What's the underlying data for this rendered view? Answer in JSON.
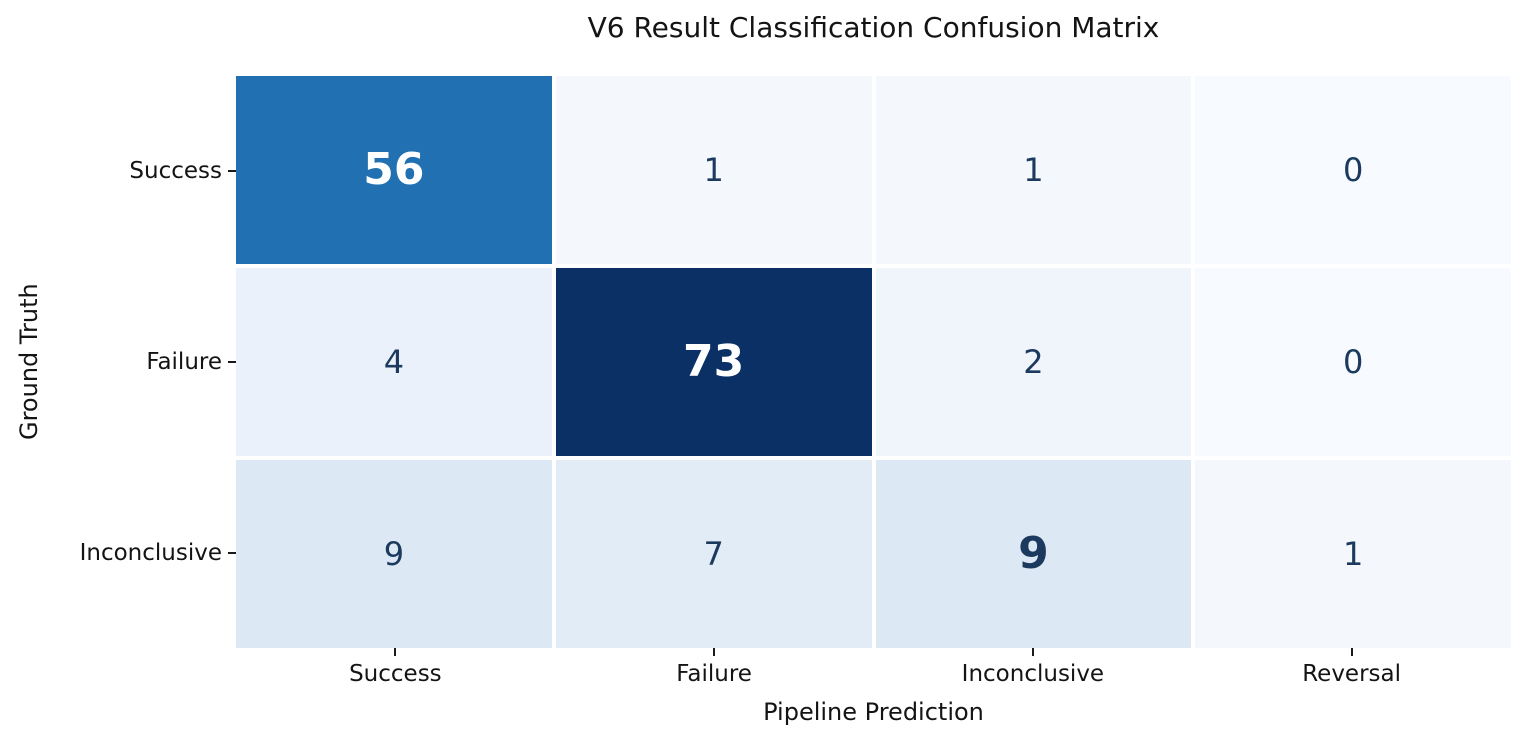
{
  "chart_data": {
    "type": "heatmap",
    "title": "V6 Result Classification Confusion Matrix",
    "xlabel": "Pipeline Prediction",
    "ylabel": "Ground Truth",
    "x_categories": [
      "Success",
      "Failure",
      "Inconclusive",
      "Reversal"
    ],
    "y_categories": [
      "Success",
      "Failure",
      "Inconclusive"
    ],
    "matrix": [
      [
        56,
        1,
        1,
        0
      ],
      [
        4,
        73,
        2,
        0
      ],
      [
        9,
        7,
        9,
        1
      ]
    ],
    "colormap": "Blues",
    "vmin": 0,
    "vmax": 73,
    "legend": "none",
    "grid_lines": "white cell separators",
    "emphasized_cells": "diagonal (bold, larger font)",
    "cell_colors": [
      [
        "#2171b2",
        "#f4f8fd",
        "#f4f8fd",
        "#f7fbff"
      ],
      [
        "#eaf1fa",
        "#0a3066",
        "#f0f5fc",
        "#f7fbff"
      ],
      [
        "#dce8f4",
        "#e1ecf7",
        "#dce8f4",
        "#f4f8fd"
      ]
    ],
    "text_colors": [
      [
        "#ffffff",
        "#1c3a5e",
        "#1c3a5e",
        "#1c3a5e"
      ],
      [
        "#1c3a5e",
        "#ffffff",
        "#1c3a5e",
        "#1c3a5e"
      ],
      [
        "#1c3a5e",
        "#1c3a5e",
        "#1c3a5e",
        "#1c3a5e"
      ]
    ]
  },
  "style": {
    "background": "#ffffff",
    "accent_blue": "#2171b2",
    "dark_navy": "#0a3066",
    "annotation_navy": "#1c3a5e",
    "tick_color": "#1a1a1a"
  }
}
